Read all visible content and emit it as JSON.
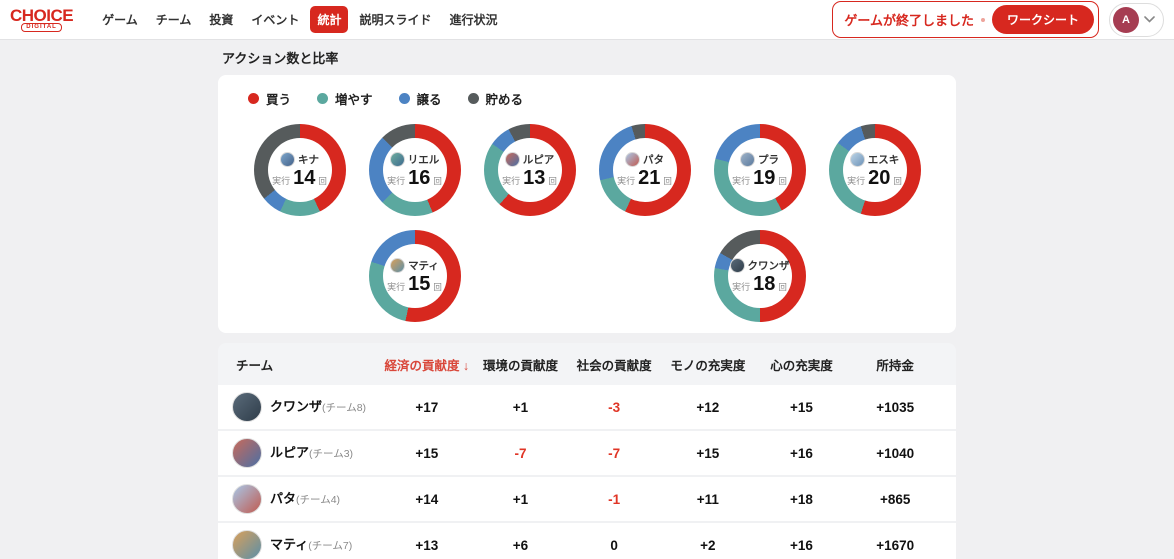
{
  "header": {
    "logo": {
      "title": "CHOICE",
      "subtitle": "DIGITAL"
    },
    "nav": [
      {
        "label": "ゲーム",
        "active": false
      },
      {
        "label": "チーム",
        "active": false
      },
      {
        "label": "投資",
        "active": false
      },
      {
        "label": "イベント",
        "active": false
      },
      {
        "label": "統計",
        "active": true
      },
      {
        "label": "説明スライド",
        "active": false
      },
      {
        "label": "進行状況",
        "active": false
      }
    ],
    "notification": {
      "message": "ゲームが終了しました",
      "action_label": "ワークシート"
    },
    "user": {
      "initial": "A"
    }
  },
  "section": {
    "title": "アクション数と比率"
  },
  "legend": [
    {
      "label": "買う",
      "color": "#d7281f"
    },
    {
      "label": "増やす",
      "color": "#5ba89f"
    },
    {
      "label": "譲る",
      "color": "#4c83c3"
    },
    {
      "label": "貯める",
      "color": "#565b5c"
    }
  ],
  "chart_data": {
    "type": "pie",
    "subtype": "donut-multiples",
    "actions": [
      "買う",
      "増やす",
      "譲る",
      "貯める"
    ],
    "colors": [
      "#d7281f",
      "#5ba89f",
      "#4c83c3",
      "#565b5c"
    ],
    "count_prefix": "実行",
    "count_suffix": "回",
    "teams": [
      {
        "name": "キナ",
        "total": 14,
        "segments": [
          6,
          2,
          1,
          5
        ],
        "column": 1,
        "avatar_colors": [
          "#7da7cc",
          "#45628a"
        ]
      },
      {
        "name": "リエル",
        "total": 16,
        "segments": [
          7,
          3,
          4,
          2
        ],
        "column": 2,
        "avatar_colors": [
          "#6fae9f",
          "#3e6b8f"
        ]
      },
      {
        "name": "ルピア",
        "total": 13,
        "segments": [
          8,
          3,
          1,
          1
        ],
        "column": 3,
        "avatar_colors": [
          "#c96a5a",
          "#4a6fa5"
        ]
      },
      {
        "name": "パタ",
        "total": 21,
        "segments": [
          12,
          3,
          5,
          1
        ],
        "column": 4,
        "avatar_colors": [
          "#a8c8e8",
          "#c05a50"
        ]
      },
      {
        "name": "プラ",
        "total": 19,
        "segments": [
          8,
          7,
          4,
          0
        ],
        "column": 5,
        "avatar_colors": [
          "#9fb3c8",
          "#5b7a9e"
        ]
      },
      {
        "name": "エスキ",
        "total": 20,
        "segments": [
          11,
          6,
          2,
          1
        ],
        "column": 6,
        "avatar_colors": [
          "#bcd4e6",
          "#6e93b8"
        ]
      },
      {
        "name": "マティ",
        "total": 15,
        "segments": [
          8,
          4,
          3,
          0
        ],
        "column": 2,
        "avatar_colors": [
          "#d9a05b",
          "#5b8fa8"
        ]
      },
      {
        "name": "クワンザ",
        "total": 18,
        "segments": [
          9,
          5,
          1,
          3
        ],
        "column": 5,
        "avatar_colors": [
          "#5a6b7a",
          "#2f3d4a"
        ]
      }
    ]
  },
  "table": {
    "sort_arrow": "↓",
    "columns": [
      {
        "label": "チーム",
        "sorted": false
      },
      {
        "label": "経済の貢献度",
        "sorted": true
      },
      {
        "label": "環境の貢献度",
        "sorted": false
      },
      {
        "label": "社会の貢献度",
        "sorted": false
      },
      {
        "label": "モノの充実度",
        "sorted": false
      },
      {
        "label": "心の充実度",
        "sorted": false
      },
      {
        "label": "所持金",
        "sorted": false
      }
    ],
    "rows": [
      {
        "team": "クワンザ",
        "team_suffix": "(チーム8)",
        "avatar_colors": [
          "#5a6b7a",
          "#2f3d4a"
        ],
        "values": [
          "+17",
          "+1",
          "-3",
          "+12",
          "+15",
          "+1035"
        ]
      },
      {
        "team": "ルピア",
        "team_suffix": "(チーム3)",
        "avatar_colors": [
          "#c96a5a",
          "#4a6fa5"
        ],
        "values": [
          "+15",
          "-7",
          "-7",
          "+15",
          "+16",
          "+1040"
        ]
      },
      {
        "team": "パタ",
        "team_suffix": "(チーム4)",
        "avatar_colors": [
          "#a8c8e8",
          "#c05a50"
        ],
        "values": [
          "+14",
          "+1",
          "-1",
          "+11",
          "+18",
          "+865"
        ]
      },
      {
        "team": "マティ",
        "team_suffix": "(チーム7)",
        "avatar_colors": [
          "#d9a05b",
          "#5b8fa8"
        ],
        "values": [
          "+13",
          "+6",
          "0",
          "+2",
          "+16",
          "+1670"
        ]
      }
    ]
  }
}
